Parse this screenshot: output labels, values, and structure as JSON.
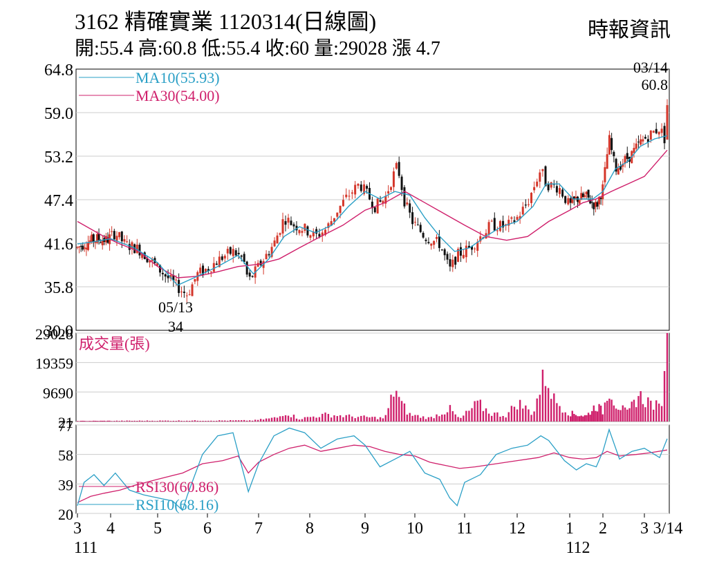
{
  "header": {
    "title": "3162  精確實業 1120314(日線圖)",
    "source": "時報資訊",
    "ohlc": "開:55.4 高:60.8 低:55.4 收:60 量:29028 漲 4.7"
  },
  "colors": {
    "candle_up": "#d4362a",
    "candle_down": "#111111",
    "ma10": "#2a9fc6",
    "ma30": "#cf1f6b",
    "volume": "#cf1f6b",
    "rsi30": "#cf1f6b",
    "rsi10": "#2a9fc6",
    "grid": "#cccccc"
  },
  "chart_data": [
    {
      "type": "candlestick",
      "ylim": [
        30.0,
        64.8
      ],
      "y_ticks": [
        "64.8",
        "59.0",
        "53.2",
        "47.4",
        "41.6",
        "35.8",
        "30.0"
      ],
      "legend": [
        {
          "label": "MA10(55.93)",
          "color": "#2a9fc6"
        },
        {
          "label": "MA30(54.00)",
          "color": "#cf1f6b"
        }
      ],
      "annotations": [
        {
          "date_label": "05/13",
          "value_label": "34",
          "price": 34.0,
          "month_pos": 5.55
        },
        {
          "date_label": "03/14",
          "value_label": "60.8",
          "price": 60.8,
          "month_pos": 15.45
        }
      ],
      "close_path": [
        [
          3.0,
          41.0
        ],
        [
          3.3,
          41.8
        ],
        [
          3.6,
          42.2
        ],
        [
          3.9,
          42.0
        ],
        [
          4.1,
          43.0
        ],
        [
          4.3,
          41.5
        ],
        [
          4.6,
          40.8
        ],
        [
          4.9,
          39.0
        ],
        [
          5.2,
          37.0
        ],
        [
          5.5,
          35.2
        ],
        [
          5.6,
          34.8
        ],
        [
          5.8,
          37.5
        ],
        [
          6.0,
          38.2
        ],
        [
          6.3,
          39.8
        ],
        [
          6.5,
          40.5
        ],
        [
          6.7,
          39.5
        ],
        [
          6.8,
          36.5
        ],
        [
          7.0,
          38.5
        ],
        [
          7.3,
          41.5
        ],
        [
          7.5,
          45.0
        ],
        [
          7.7,
          44.0
        ],
        [
          7.9,
          43.5
        ],
        [
          8.1,
          42.5
        ],
        [
          8.3,
          43.5
        ],
        [
          8.5,
          46.0
        ],
        [
          8.7,
          48.0
        ],
        [
          8.9,
          49.5
        ],
        [
          9.0,
          48.5
        ],
        [
          9.2,
          46.5
        ],
        [
          9.4,
          47.5
        ],
        [
          9.5,
          49.5
        ],
        [
          9.65,
          52.0
        ],
        [
          9.8,
          47.0
        ],
        [
          9.95,
          44.5
        ],
        [
          10.2,
          42.5
        ],
        [
          10.5,
          41.5
        ],
        [
          10.7,
          38.0
        ],
        [
          10.85,
          40.0
        ],
        [
          11.1,
          41.0
        ],
        [
          11.3,
          42.5
        ],
        [
          11.5,
          44.0
        ],
        [
          11.8,
          43.8
        ],
        [
          12.0,
          45.0
        ],
        [
          12.2,
          47.0
        ],
        [
          12.45,
          51.5
        ],
        [
          12.55,
          49.5
        ],
        [
          12.8,
          49.0
        ],
        [
          13.0,
          46.5
        ],
        [
          13.2,
          47.5
        ],
        [
          13.5,
          47.8
        ],
        [
          13.8,
          46.5
        ],
        [
          14.0,
          49.0
        ],
        [
          14.15,
          55.5
        ],
        [
          14.3,
          51.5
        ],
        [
          14.5,
          52.5
        ],
        [
          14.7,
          53.5
        ],
        [
          14.9,
          55.0
        ],
        [
          15.1,
          56.0
        ],
        [
          15.3,
          57.0
        ],
        [
          15.4,
          55.5
        ],
        [
          15.45,
          60.0
        ]
      ],
      "ma10": [
        [
          3.0,
          41.5
        ],
        [
          3.5,
          41.8
        ],
        [
          4.0,
          42.2
        ],
        [
          4.5,
          41.0
        ],
        [
          5.0,
          39.0
        ],
        [
          5.4,
          36.0
        ],
        [
          5.8,
          37.2
        ],
        [
          6.2,
          38.5
        ],
        [
          6.6,
          40.0
        ],
        [
          6.9,
          37.5
        ],
        [
          7.2,
          39.5
        ],
        [
          7.5,
          42.5
        ],
        [
          7.8,
          43.8
        ],
        [
          8.1,
          43.0
        ],
        [
          8.4,
          44.0
        ],
        [
          8.7,
          46.5
        ],
        [
          9.0,
          48.5
        ],
        [
          9.3,
          47.5
        ],
        [
          9.6,
          48.5
        ],
        [
          9.9,
          48.0
        ],
        [
          10.2,
          45.0
        ],
        [
          10.5,
          42.5
        ],
        [
          10.8,
          40.5
        ],
        [
          11.1,
          41.0
        ],
        [
          11.4,
          42.5
        ],
        [
          11.7,
          43.8
        ],
        [
          12.0,
          44.5
        ],
        [
          12.3,
          46.5
        ],
        [
          12.55,
          49.5
        ],
        [
          12.8,
          49.5
        ],
        [
          13.1,
          47.5
        ],
        [
          13.4,
          47.5
        ],
        [
          13.7,
          47.5
        ],
        [
          14.0,
          48.5
        ],
        [
          14.3,
          51.5
        ],
        [
          14.6,
          52.5
        ],
        [
          14.9,
          54.5
        ],
        [
          15.2,
          55.5
        ],
        [
          15.45,
          55.93
        ]
      ],
      "ma30": [
        [
          3.0,
          44.5
        ],
        [
          3.4,
          43.5
        ],
        [
          3.8,
          42.5
        ],
        [
          4.2,
          41.5
        ],
        [
          4.6,
          40.5
        ],
        [
          5.0,
          38.5
        ],
        [
          5.4,
          37.0
        ],
        [
          5.8,
          37.2
        ],
        [
          6.2,
          37.8
        ],
        [
          6.6,
          38.5
        ],
        [
          7.0,
          38.8
        ],
        [
          7.4,
          39.5
        ],
        [
          7.8,
          41.0
        ],
        [
          8.2,
          42.5
        ],
        [
          8.6,
          44.0
        ],
        [
          9.0,
          46.0
        ],
        [
          9.4,
          47.0
        ],
        [
          9.8,
          48.5
        ],
        [
          10.2,
          47.0
        ],
        [
          10.6,
          45.5
        ],
        [
          11.0,
          44.0
        ],
        [
          11.4,
          42.5
        ],
        [
          11.8,
          42.0
        ],
        [
          12.2,
          42.5
        ],
        [
          12.6,
          44.5
        ],
        [
          13.0,
          46.0
        ],
        [
          13.4,
          47.0
        ],
        [
          13.8,
          47.5
        ],
        [
          14.2,
          48.5
        ],
        [
          14.6,
          49.5
        ],
        [
          15.0,
          50.5
        ],
        [
          15.45,
          54.0
        ]
      ]
    },
    {
      "type": "bar",
      "label": "成交量(張)",
      "ylim": [
        0,
        29028
      ],
      "y_ticks": [
        "29028",
        "19359",
        "9690",
        "21"
      ],
      "volume_profile": [
        [
          3.0,
          200
        ],
        [
          6.9,
          400
        ],
        [
          7.4,
          1500
        ],
        [
          7.5,
          3500
        ],
        [
          7.8,
          1000
        ],
        [
          8.3,
          2500
        ],
        [
          8.8,
          1800
        ],
        [
          9.4,
          1200
        ],
        [
          9.55,
          9000
        ],
        [
          9.6,
          13500
        ],
        [
          9.7,
          7000
        ],
        [
          9.9,
          2500
        ],
        [
          10.3,
          1200
        ],
        [
          10.7,
          4500
        ],
        [
          10.9,
          800
        ],
        [
          11.25,
          6500
        ],
        [
          11.5,
          3000
        ],
        [
          11.8,
          2200
        ],
        [
          12.0,
          7000
        ],
        [
          12.3,
          3000
        ],
        [
          12.45,
          12500
        ],
        [
          12.55,
          17500
        ],
        [
          12.7,
          8000
        ],
        [
          13.0,
          3000
        ],
        [
          13.5,
          2000
        ],
        [
          13.8,
          6000
        ],
        [
          14.0,
          3500
        ],
        [
          14.15,
          13000
        ],
        [
          14.3,
          6500
        ],
        [
          14.6,
          3000
        ],
        [
          14.85,
          9500
        ],
        [
          15.1,
          7000
        ],
        [
          15.3,
          5000
        ],
        [
          15.4,
          15000
        ],
        [
          15.45,
          29028
        ]
      ]
    },
    {
      "type": "line",
      "ylim": [
        20,
        77
      ],
      "y_ticks": [
        "77",
        "58",
        "39",
        "20"
      ],
      "series": [
        {
          "name": "RSI30(60.86)",
          "color": "#cf1f6b",
          "values": [
            [
              3.0,
              27
            ],
            [
              3.4,
              31
            ],
            [
              3.8,
              33
            ],
            [
              4.2,
              35
            ],
            [
              4.5,
              38
            ],
            [
              5.0,
              42
            ],
            [
              5.5,
              46
            ],
            [
              5.9,
              52
            ],
            [
              6.3,
              54
            ],
            [
              6.6,
              57
            ],
            [
              6.8,
              46
            ],
            [
              7.0,
              53
            ],
            [
              7.3,
              58
            ],
            [
              7.6,
              62
            ],
            [
              7.9,
              64
            ],
            [
              8.2,
              60
            ],
            [
              8.5,
              62
            ],
            [
              8.8,
              64
            ],
            [
              9.1,
              63
            ],
            [
              9.4,
              60
            ],
            [
              9.7,
              58
            ],
            [
              10.0,
              57
            ],
            [
              10.3,
              53
            ],
            [
              10.6,
              51
            ],
            [
              10.9,
              49
            ],
            [
              11.2,
              50
            ],
            [
              11.6,
              52
            ],
            [
              12.0,
              54
            ],
            [
              12.4,
              56
            ],
            [
              12.7,
              59
            ],
            [
              13.0,
              56
            ],
            [
              13.4,
              55
            ],
            [
              13.8,
              56
            ],
            [
              14.1,
              60
            ],
            [
              14.4,
              57
            ],
            [
              14.8,
              58
            ],
            [
              15.1,
              59
            ],
            [
              15.45,
              60.86
            ]
          ]
        },
        {
          "name": "RSI10(68.16)",
          "color": "#2a9fc6",
          "values": [
            [
              3.0,
              25
            ],
            [
              3.2,
              40
            ],
            [
              3.5,
              45
            ],
            [
              3.8,
              38
            ],
            [
              4.1,
              46
            ],
            [
              4.4,
              35
            ],
            [
              4.7,
              32
            ],
            [
              5.0,
              30
            ],
            [
              5.3,
              28
            ],
            [
              5.5,
              22
            ],
            [
              5.6,
              32
            ],
            [
              5.9,
              58
            ],
            [
              6.2,
              70
            ],
            [
              6.5,
              72
            ],
            [
              6.8,
              34
            ],
            [
              7.0,
              52
            ],
            [
              7.3,
              70
            ],
            [
              7.6,
              75
            ],
            [
              7.9,
              72
            ],
            [
              8.2,
              62
            ],
            [
              8.5,
              68
            ],
            [
              8.8,
              70
            ],
            [
              9.0,
              64
            ],
            [
              9.3,
              50
            ],
            [
              9.6,
              55
            ],
            [
              9.9,
              60
            ],
            [
              10.2,
              46
            ],
            [
              10.5,
              42
            ],
            [
              10.7,
              30
            ],
            [
              10.85,
              25
            ],
            [
              11.0,
              40
            ],
            [
              11.3,
              45
            ],
            [
              11.6,
              58
            ],
            [
              11.9,
              62
            ],
            [
              12.2,
              64
            ],
            [
              12.45,
              70
            ],
            [
              12.6,
              67
            ],
            [
              12.9,
              54
            ],
            [
              13.2,
              48
            ],
            [
              13.5,
              52
            ],
            [
              13.8,
              50
            ],
            [
              14.0,
              60
            ],
            [
              14.15,
              74
            ],
            [
              14.4,
              55
            ],
            [
              14.7,
              60
            ],
            [
              15.0,
              62
            ],
            [
              15.3,
              56
            ],
            [
              15.45,
              68.16
            ]
          ]
        }
      ]
    }
  ],
  "x_axis": {
    "month_ticks": [
      "3",
      "4",
      "5",
      "6",
      "7",
      "8",
      "9",
      "10",
      "11",
      "12",
      "1",
      "2",
      "3"
    ],
    "end_label": "3/14",
    "year_labels": [
      {
        "label": "111",
        "month_pos": 3.0
      },
      {
        "label": "112",
        "month_pos": 13.0
      }
    ]
  }
}
